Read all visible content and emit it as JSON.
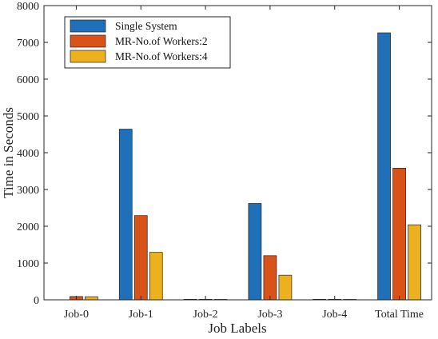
{
  "chart_data": {
    "type": "bar",
    "categories": [
      "Job-0",
      "Job-1",
      "Job-2",
      "Job-3",
      "Job-4",
      "Total Time"
    ],
    "series": [
      {
        "name": "Single System",
        "color": "#1f70b8",
        "values": [
          0,
          4640,
          15,
          2620,
          15,
          7260
        ]
      },
      {
        "name": "MR-No.of Workers:2",
        "color": "#d95319",
        "values": [
          90,
          2290,
          15,
          1200,
          15,
          3580
        ]
      },
      {
        "name": "MR-No.of Workers:4",
        "color": "#edb120",
        "values": [
          85,
          1290,
          12,
          670,
          12,
          2040
        ]
      }
    ],
    "xlabel": "Job Labels",
    "ylabel": "Time in Seconds",
    "ylim": [
      0,
      8000
    ],
    "yticks": [
      0,
      1000,
      2000,
      3000,
      4000,
      5000,
      6000,
      7000,
      8000
    ],
    "grid": false,
    "legend_position": "top-left"
  }
}
